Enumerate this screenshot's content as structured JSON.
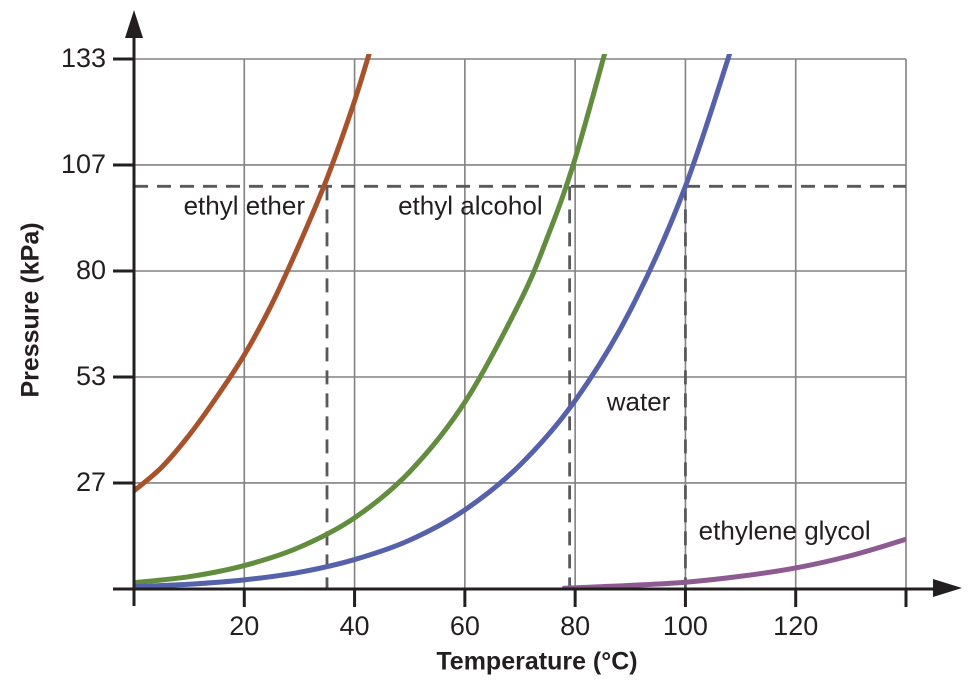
{
  "figure": {
    "background": "#ffffff",
    "axis_color": "#231f20",
    "grid_color": "#828282",
    "dash_color": "#58595b",
    "text_color": "#231f20"
  },
  "chart_data": {
    "type": "line",
    "title": "",
    "xlabel": "Temperature (°C)",
    "ylabel": "Pressure (kPa)",
    "xlim": [
      0,
      140
    ],
    "ylim": [
      0,
      133.33
    ],
    "grid": true,
    "legend_position": "inline-annotations",
    "x_ticks": [
      {
        "value": 20,
        "label": "20"
      },
      {
        "value": 40,
        "label": "40"
      },
      {
        "value": 60,
        "label": "60"
      },
      {
        "value": 80,
        "label": "80"
      },
      {
        "value": 100,
        "label": "100"
      },
      {
        "value": 120,
        "label": "120"
      },
      {
        "value": 140,
        "label": ""
      }
    ],
    "y_ticks": [
      {
        "value": 26.67,
        "label": "27"
      },
      {
        "value": 53.33,
        "label": "53"
      },
      {
        "value": 80,
        "label": "80"
      },
      {
        "value": 106.67,
        "label": "107"
      },
      {
        "value": 133.33,
        "label": "133"
      }
    ],
    "series": [
      {
        "name": "ethyl ether",
        "color": "#a8522c",
        "label_pos": {
          "t": 20,
          "p": 96.3
        },
        "points": [
          [
            0,
            24.7
          ],
          [
            5,
            30.6
          ],
          [
            10,
            38.7
          ],
          [
            15,
            48.3
          ],
          [
            20,
            58.9
          ],
          [
            25,
            71.7
          ],
          [
            30,
            86.8
          ],
          [
            35,
            103.3
          ],
          [
            40,
            122.8
          ],
          [
            44,
            141
          ]
        ]
      },
      {
        "name": "ethyl alcohol",
        "color": "#628c3e",
        "label_pos": {
          "t": 61,
          "p": 96.3
        },
        "points": [
          [
            0,
            1.6
          ],
          [
            10,
            3.1
          ],
          [
            20,
            5.9
          ],
          [
            30,
            10.5
          ],
          [
            40,
            17.9
          ],
          [
            50,
            29.5
          ],
          [
            60,
            47.0
          ],
          [
            70,
            72.3
          ],
          [
            75,
            88.6
          ],
          [
            80,
            108.3
          ],
          [
            87,
            143
          ]
        ]
      },
      {
        "name": "water",
        "color": "#5562ab",
        "label_pos": {
          "t": 91.5,
          "p": 47
        },
        "points": [
          [
            0,
            0.6
          ],
          [
            10,
            1.2
          ],
          [
            20,
            2.3
          ],
          [
            30,
            4.2
          ],
          [
            40,
            7.4
          ],
          [
            50,
            12.3
          ],
          [
            60,
            19.9
          ],
          [
            70,
            31.2
          ],
          [
            80,
            47.4
          ],
          [
            90,
            70.1
          ],
          [
            100,
            101.3
          ],
          [
            110,
            143.3
          ]
        ]
      },
      {
        "name": "ethylene glycol",
        "color": "#8d5a92",
        "label_pos": {
          "t": 118,
          "p": 14.6
        },
        "points": [
          [
            78,
            0.2
          ],
          [
            85,
            0.6
          ],
          [
            90,
            0.9
          ],
          [
            100,
            1.7
          ],
          [
            110,
            3.2
          ],
          [
            120,
            5.3
          ],
          [
            130,
            8.4
          ],
          [
            140,
            12.5
          ]
        ]
      }
    ],
    "reference_lines": {
      "atmospheric_pressure_kpa": 101.3,
      "boiling_points_c": [
        {
          "name": "ethyl ether",
          "t": 35
        },
        {
          "name": "ethyl alcohol",
          "t": 79
        },
        {
          "name": "water",
          "t": 100
        }
      ]
    }
  }
}
